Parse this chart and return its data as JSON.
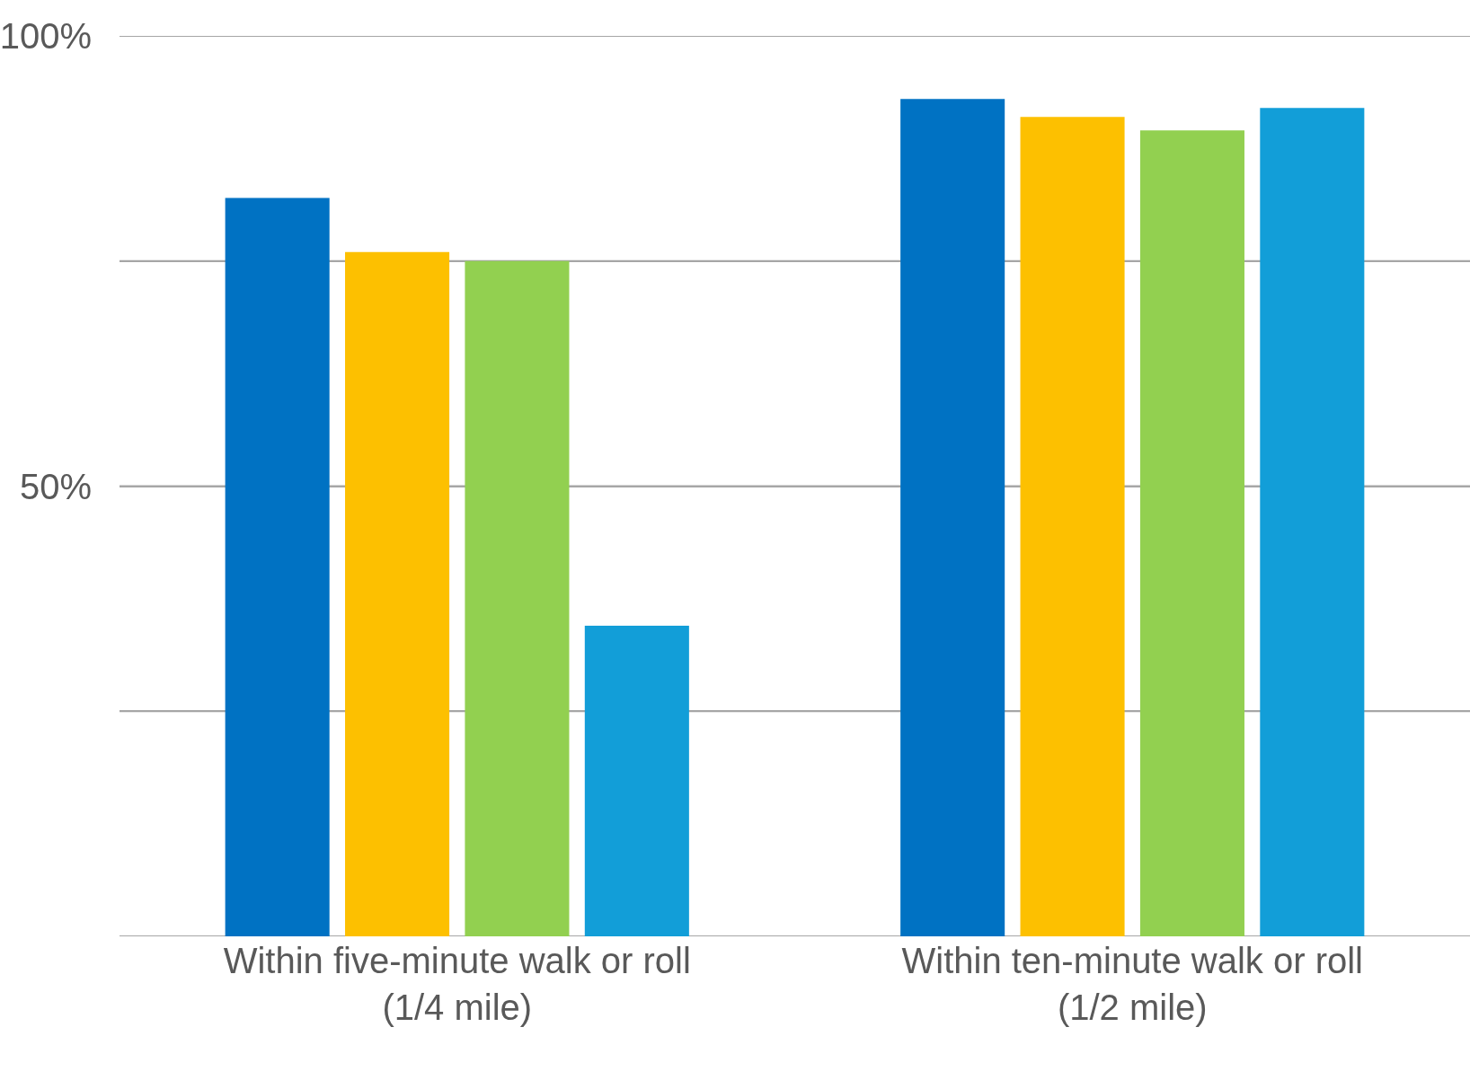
{
  "chart_data": {
    "type": "bar",
    "categories": [
      "Within five-minute walk or roll\n(1/4 mile)",
      "Within ten-minute walk or roll\n(1/2 mile)"
    ],
    "series": [
      {
        "color": "#0072c3",
        "values": [
          82,
          93
        ]
      },
      {
        "color": "#fdc000",
        "values": [
          76,
          91
        ]
      },
      {
        "color": "#92d050",
        "values": [
          75,
          89.5
        ]
      },
      {
        "color": "#129ed8",
        "values": [
          34.5,
          92
        ]
      }
    ],
    "ylim": [
      0,
      100
    ],
    "yticks": [
      {
        "value": 0,
        "label": null
      },
      {
        "value": 25,
        "label": null
      },
      {
        "value": 50,
        "label": "50%"
      },
      {
        "value": 75,
        "label": null
      },
      {
        "value": 100,
        "label": "100%"
      }
    ],
    "grid": "y"
  }
}
